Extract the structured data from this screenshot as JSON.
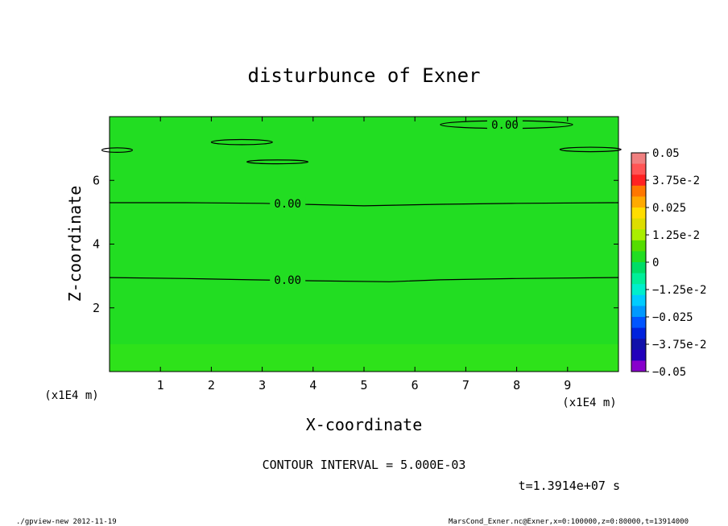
{
  "chart_data": {
    "type": "heatmap",
    "title": "disturbunce of Exner",
    "xlabel": "X-coordinate",
    "ylabel": "Z-coordinate",
    "x_unit": "(x1E4 m)",
    "y_unit": "(x1E4 m)",
    "xlim": [
      0,
      10
    ],
    "ylim": [
      0,
      8
    ],
    "x_ticks": [
      1,
      2,
      3,
      4,
      5,
      6,
      7,
      8,
      9
    ],
    "y_ticks": [
      2,
      4,
      6
    ],
    "fill_color": "#22dd22",
    "lower_fill_color": "#2ee21a",
    "contour_label": "0.00",
    "contours": [
      {
        "level": 0.0,
        "label": "0.00",
        "points": [
          [
            0,
            5.3
          ],
          [
            1.5,
            5.3
          ],
          [
            3,
            5.28
          ],
          [
            5,
            5.2
          ],
          [
            6.5,
            5.25
          ],
          [
            8,
            5.28
          ],
          [
            10,
            5.3
          ]
        ]
      },
      {
        "level": 0.0,
        "label": "0.00",
        "points": [
          [
            0,
            2.95
          ],
          [
            1.5,
            2.92
          ],
          [
            2.8,
            2.88
          ],
          [
            4,
            2.85
          ],
          [
            5.5,
            2.82
          ],
          [
            6.5,
            2.88
          ],
          [
            8,
            2.92
          ],
          [
            10,
            2.95
          ]
        ]
      }
    ],
    "closed_contours": [
      {
        "cx": 2.6,
        "cy": 7.2,
        "rx": 0.6,
        "ry": 0.08
      },
      {
        "cx": 3.3,
        "cy": 6.58,
        "rx": 0.6,
        "ry": 0.06
      },
      {
        "cx": 0.15,
        "cy": 6.95,
        "rx": 0.3,
        "ry": 0.07
      },
      {
        "cx": 9.45,
        "cy": 6.97,
        "rx": 0.6,
        "ry": 0.07
      },
      {
        "cx": 7.8,
        "cy": 7.75,
        "rx": 1.3,
        "ry": 0.12
      }
    ],
    "top_label": {
      "text": "0.00",
      "x": 7.8,
      "y": 7.75
    },
    "colorbar": {
      "levels": [
        "0.05",
        "3.75e-2",
        "0.025",
        "1.25e-2",
        "0",
        "−1.25e-2",
        "−0.025",
        "−3.75e-2",
        "−0.05"
      ],
      "values": [
        0.05,
        0.0375,
        0.025,
        0.0125,
        0,
        -0.0125,
        -0.025,
        -0.0375,
        -0.05
      ],
      "colors": [
        "#f08080",
        "#ff5555",
        "#ff2222",
        "#ff7700",
        "#ffaa00",
        "#ffdd00",
        "#dddd00",
        "#aaee00",
        "#55dd00",
        "#22dd22",
        "#00dd66",
        "#00ee99",
        "#00eecc",
        "#00ccff",
        "#0099ff",
        "#0055ff",
        "#0022dd",
        "#1111aa",
        "#2200bb",
        "#8800cc"
      ]
    },
    "annotations": {
      "contour_interval": "CONTOUR INTERVAL = 5.000E-03",
      "time": "t=1.3914e+07 s",
      "footer_left": "./gpview-new  2012-11-19",
      "footer_right": "MarsCond_Exner.nc@Exner,x=0:100000,z=0:80000,t=13914000"
    }
  }
}
